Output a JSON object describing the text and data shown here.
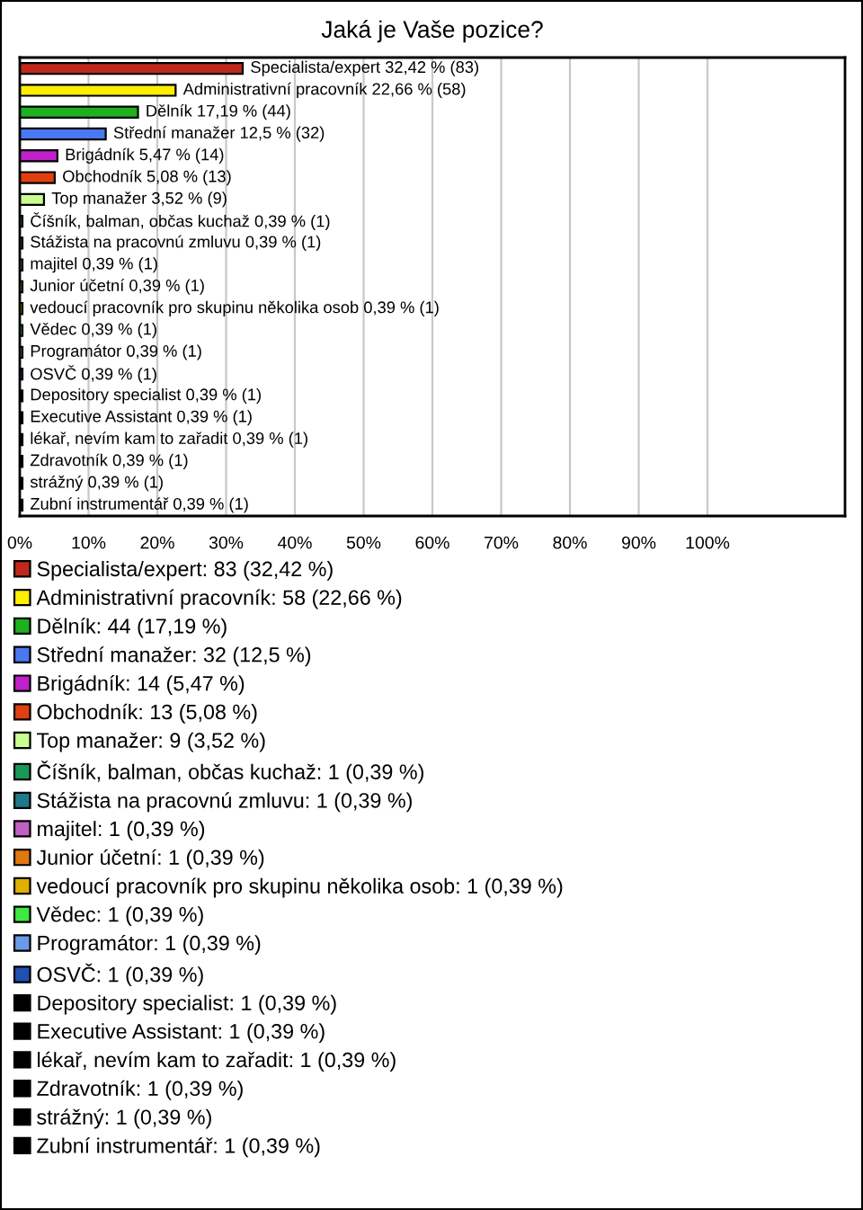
{
  "chart_data": {
    "type": "bar",
    "orientation": "horizontal",
    "title": "Jaká je Vaše pozice?",
    "categories": [
      null,
      null,
      null,
      null,
      null,
      null,
      null,
      null,
      null,
      null,
      null,
      null,
      null,
      null,
      null,
      null,
      null,
      null,
      null,
      null,
      null
    ],
    "xlim": [
      0,
      120
    ],
    "xticks": [
      {
        "value": 0,
        "label": "0%"
      },
      {
        "value": 10,
        "label": "10%"
      },
      {
        "value": 20,
        "label": "20%"
      },
      {
        "value": 30,
        "label": "30%"
      },
      {
        "value": 40,
        "label": "40%"
      },
      {
        "value": 50,
        "label": "50%"
      },
      {
        "value": 60,
        "label": "60%"
      },
      {
        "value": 70,
        "label": "70%"
      },
      {
        "value": 80,
        "label": "80%"
      },
      {
        "value": 90,
        "label": "90%"
      },
      {
        "value": 100,
        "label": "100%"
      }
    ],
    "tick_labels": "x",
    "grid": "x",
    "legend": "bottom",
    "series": [
      {
        "name": "Specialista/expert: 83 (32,42 %)",
        "color": "#c0281c",
        "values": [
          32.42,
          null,
          null,
          null,
          null,
          null,
          null,
          null,
          null,
          null,
          null,
          null,
          null,
          null,
          null,
          null,
          null,
          null,
          null,
          null,
          null
        ],
        "value_labels": [
          "Specialista/expert 32,42 % (83)",
          null,
          null,
          null,
          null,
          null,
          null,
          null,
          null,
          null,
          null,
          null,
          null,
          null,
          null,
          null,
          null,
          null,
          null,
          null,
          null
        ]
      },
      {
        "name": "Administrativní pracovník: 58 (22,66 %)",
        "color": "#ffee00",
        "values": [
          null,
          22.66,
          null,
          null,
          null,
          null,
          null,
          null,
          null,
          null,
          null,
          null,
          null,
          null,
          null,
          null,
          null,
          null,
          null,
          null,
          null
        ],
        "value_labels": [
          null,
          "Administrativní pracovník 22,66 % (58)",
          null,
          null,
          null,
          null,
          null,
          null,
          null,
          null,
          null,
          null,
          null,
          null,
          null,
          null,
          null,
          null,
          null,
          null,
          null
        ]
      },
      {
        "name": "Dělník: 44 (17,19 %)",
        "color": "#1fb01f",
        "values": [
          null,
          null,
          17.19,
          null,
          null,
          null,
          null,
          null,
          null,
          null,
          null,
          null,
          null,
          null,
          null,
          null,
          null,
          null,
          null,
          null,
          null
        ],
        "value_labels": [
          null,
          null,
          "Dělník 17,19 % (44)",
          null,
          null,
          null,
          null,
          null,
          null,
          null,
          null,
          null,
          null,
          null,
          null,
          null,
          null,
          null,
          null,
          null,
          null
        ]
      },
      {
        "name": "Střední manažer: 32 (12,5 %)",
        "color": "#4a78f0",
        "values": [
          null,
          null,
          null,
          12.5,
          null,
          null,
          null,
          null,
          null,
          null,
          null,
          null,
          null,
          null,
          null,
          null,
          null,
          null,
          null,
          null,
          null
        ],
        "value_labels": [
          null,
          null,
          null,
          "Střední manažer 12,5 % (32)",
          null,
          null,
          null,
          null,
          null,
          null,
          null,
          null,
          null,
          null,
          null,
          null,
          null,
          null,
          null,
          null,
          null
        ]
      },
      {
        "name": "Brigádník: 14 (5,47 %)",
        "color": "#c020c8",
        "values": [
          null,
          null,
          null,
          null,
          5.47,
          null,
          null,
          null,
          null,
          null,
          null,
          null,
          null,
          null,
          null,
          null,
          null,
          null,
          null,
          null,
          null
        ],
        "value_labels": [
          null,
          null,
          null,
          null,
          "Brigádník 5,47 % (14)",
          null,
          null,
          null,
          null,
          null,
          null,
          null,
          null,
          null,
          null,
          null,
          null,
          null,
          null,
          null,
          null
        ]
      },
      {
        "name": "Obchodník: 13 (5,08 %)",
        "color": "#e0400f",
        "values": [
          null,
          null,
          null,
          null,
          null,
          5.08,
          null,
          null,
          null,
          null,
          null,
          null,
          null,
          null,
          null,
          null,
          null,
          null,
          null,
          null,
          null
        ],
        "value_labels": [
          null,
          null,
          null,
          null,
          null,
          "Obchodník 5,08 % (13)",
          null,
          null,
          null,
          null,
          null,
          null,
          null,
          null,
          null,
          null,
          null,
          null,
          null,
          null,
          null
        ]
      },
      {
        "name": "Top manažer: 9 (3,52 %)",
        "color": "#c8ff90",
        "values": [
          null,
          null,
          null,
          null,
          null,
          null,
          3.52,
          null,
          null,
          null,
          null,
          null,
          null,
          null,
          null,
          null,
          null,
          null,
          null,
          null,
          null
        ],
        "value_labels": [
          null,
          null,
          null,
          null,
          null,
          null,
          "Top manažer 3,52 % (9)",
          null,
          null,
          null,
          null,
          null,
          null,
          null,
          null,
          null,
          null,
          null,
          null,
          null,
          null
        ]
      },
      {
        "name": "Číšník, balman, občas kuchaž: 1 (0,39 %)",
        "color": "#189858",
        "values": [
          null,
          null,
          null,
          null,
          null,
          null,
          null,
          0.39,
          null,
          null,
          null,
          null,
          null,
          null,
          null,
          null,
          null,
          null,
          null,
          null,
          null
        ],
        "value_labels": [
          null,
          null,
          null,
          null,
          null,
          null,
          null,
          "Číšník, balman, občas kuchaž 0,39 % (1)",
          null,
          null,
          null,
          null,
          null,
          null,
          null,
          null,
          null,
          null,
          null,
          null,
          null
        ]
      },
      {
        "name": "Stážista na pracovnú zmluvu: 1 (0,39 %)",
        "color": "#207888",
        "values": [
          null,
          null,
          null,
          null,
          null,
          null,
          null,
          null,
          0.39,
          null,
          null,
          null,
          null,
          null,
          null,
          null,
          null,
          null,
          null,
          null,
          null
        ],
        "value_labels": [
          null,
          null,
          null,
          null,
          null,
          null,
          null,
          null,
          "Stážista na pracovnú zmluvu 0,39 % (1)",
          null,
          null,
          null,
          null,
          null,
          null,
          null,
          null,
          null,
          null,
          null,
          null
        ]
      },
      {
        "name": "majitel: 1 (0,39 %)",
        "color": "#c060c0",
        "values": [
          null,
          null,
          null,
          null,
          null,
          null,
          null,
          null,
          null,
          0.39,
          null,
          null,
          null,
          null,
          null,
          null,
          null,
          null,
          null,
          null,
          null
        ],
        "value_labels": [
          null,
          null,
          null,
          null,
          null,
          null,
          null,
          null,
          null,
          "majitel 0,39 % (1)",
          null,
          null,
          null,
          null,
          null,
          null,
          null,
          null,
          null,
          null,
          null
        ]
      },
      {
        "name": "Junior účetní: 1 (0,39 %)",
        "color": "#e07810",
        "values": [
          null,
          null,
          null,
          null,
          null,
          null,
          null,
          null,
          null,
          null,
          0.39,
          null,
          null,
          null,
          null,
          null,
          null,
          null,
          null,
          null,
          null
        ],
        "value_labels": [
          null,
          null,
          null,
          null,
          null,
          null,
          null,
          null,
          null,
          null,
          "Junior účetní 0,39 % (1)",
          null,
          null,
          null,
          null,
          null,
          null,
          null,
          null,
          null,
          null
        ]
      },
      {
        "name": "vedoucí pracovník pro skupinu několika osob: 1 (0,39 %)",
        "color": "#e0b000",
        "values": [
          null,
          null,
          null,
          null,
          null,
          null,
          null,
          null,
          null,
          null,
          null,
          0.39,
          null,
          null,
          null,
          null,
          null,
          null,
          null,
          null,
          null
        ],
        "value_labels": [
          null,
          null,
          null,
          null,
          null,
          null,
          null,
          null,
          null,
          null,
          null,
          "vedoucí pracovník pro skupinu několika osob 0,39 % (1)",
          null,
          null,
          null,
          null,
          null,
          null,
          null,
          null,
          null
        ]
      },
      {
        "name": "Vědec: 1 (0,39 %)",
        "color": "#40e840",
        "values": [
          null,
          null,
          null,
          null,
          null,
          null,
          null,
          null,
          null,
          null,
          null,
          null,
          0.39,
          null,
          null,
          null,
          null,
          null,
          null,
          null,
          null
        ],
        "value_labels": [
          null,
          null,
          null,
          null,
          null,
          null,
          null,
          null,
          null,
          null,
          null,
          null,
          "Vědec 0,39 % (1)",
          null,
          null,
          null,
          null,
          null,
          null,
          null,
          null
        ]
      },
      {
        "name": "Programátor: 1 (0,39 %)",
        "color": "#6c98e8",
        "values": [
          null,
          null,
          null,
          null,
          null,
          null,
          null,
          null,
          null,
          null,
          null,
          null,
          null,
          0.39,
          null,
          null,
          null,
          null,
          null,
          null,
          null
        ],
        "value_labels": [
          null,
          null,
          null,
          null,
          null,
          null,
          null,
          null,
          null,
          null,
          null,
          null,
          null,
          "Programátor 0,39 % (1)",
          null,
          null,
          null,
          null,
          null,
          null,
          null
        ]
      },
      {
        "name": "OSVČ: 1 (0,39 %)",
        "color": "#2050b0",
        "values": [
          null,
          null,
          null,
          null,
          null,
          null,
          null,
          null,
          null,
          null,
          null,
          null,
          null,
          null,
          0.39,
          null,
          null,
          null,
          null,
          null,
          null
        ],
        "value_labels": [
          null,
          null,
          null,
          null,
          null,
          null,
          null,
          null,
          null,
          null,
          null,
          null,
          null,
          null,
          "OSVČ 0,39 % (1)",
          null,
          null,
          null,
          null,
          null,
          null
        ]
      },
      {
        "name": "Depository specialist: 1 (0,39 %)",
        "color": "#000000",
        "values": [
          null,
          null,
          null,
          null,
          null,
          null,
          null,
          null,
          null,
          null,
          null,
          null,
          null,
          null,
          null,
          0.39,
          null,
          null,
          null,
          null,
          null
        ],
        "value_labels": [
          null,
          null,
          null,
          null,
          null,
          null,
          null,
          null,
          null,
          null,
          null,
          null,
          null,
          null,
          null,
          "Depository specialist 0,39 % (1)",
          null,
          null,
          null,
          null,
          null
        ]
      },
      {
        "name": "Executive Assistant: 1 (0,39 %)",
        "color": "#000000",
        "values": [
          null,
          null,
          null,
          null,
          null,
          null,
          null,
          null,
          null,
          null,
          null,
          null,
          null,
          null,
          null,
          null,
          0.39,
          null,
          null,
          null,
          null
        ],
        "value_labels": [
          null,
          null,
          null,
          null,
          null,
          null,
          null,
          null,
          null,
          null,
          null,
          null,
          null,
          null,
          null,
          null,
          "Executive Assistant 0,39 % (1)",
          null,
          null,
          null,
          null
        ]
      },
      {
        "name": "lékař, nevím kam to zařadit: 1 (0,39 %)",
        "color": "#000000",
        "values": [
          null,
          null,
          null,
          null,
          null,
          null,
          null,
          null,
          null,
          null,
          null,
          null,
          null,
          null,
          null,
          null,
          null,
          0.39,
          null,
          null,
          null
        ],
        "value_labels": [
          null,
          null,
          null,
          null,
          null,
          null,
          null,
          null,
          null,
          null,
          null,
          null,
          null,
          null,
          null,
          null,
          null,
          "lékař, nevím kam to zařadit 0,39 % (1)",
          null,
          null,
          null
        ]
      },
      {
        "name": "Zdravotník: 1 (0,39 %)",
        "color": "#000000",
        "values": [
          null,
          null,
          null,
          null,
          null,
          null,
          null,
          null,
          null,
          null,
          null,
          null,
          null,
          null,
          null,
          null,
          null,
          null,
          0.39,
          null,
          null
        ],
        "value_labels": [
          null,
          null,
          null,
          null,
          null,
          null,
          null,
          null,
          null,
          null,
          null,
          null,
          null,
          null,
          null,
          null,
          null,
          null,
          "Zdravotník 0,39 % (1)",
          null,
          null
        ]
      },
      {
        "name": "strážný: 1 (0,39 %)",
        "color": "#000000",
        "values": [
          null,
          null,
          null,
          null,
          null,
          null,
          null,
          null,
          null,
          null,
          null,
          null,
          null,
          null,
          null,
          null,
          null,
          null,
          null,
          0.39,
          null
        ],
        "value_labels": [
          null,
          null,
          null,
          null,
          null,
          null,
          null,
          null,
          null,
          null,
          null,
          null,
          null,
          null,
          null,
          null,
          null,
          null,
          null,
          "strážný 0,39 % (1)",
          null
        ]
      },
      {
        "name": "Zubní instrumentář: 1 (0,39 %)",
        "color": "#000000",
        "values": [
          null,
          null,
          null,
          null,
          null,
          null,
          null,
          null,
          null,
          null,
          null,
          null,
          null,
          null,
          null,
          null,
          null,
          null,
          null,
          null,
          0.39
        ],
        "value_labels": [
          null,
          null,
          null,
          null,
          null,
          null,
          null,
          null,
          null,
          null,
          null,
          null,
          null,
          null,
          null,
          null,
          null,
          null,
          null,
          null,
          "Zubní instrumentář 0,39 % (1)"
        ]
      }
    ]
  }
}
